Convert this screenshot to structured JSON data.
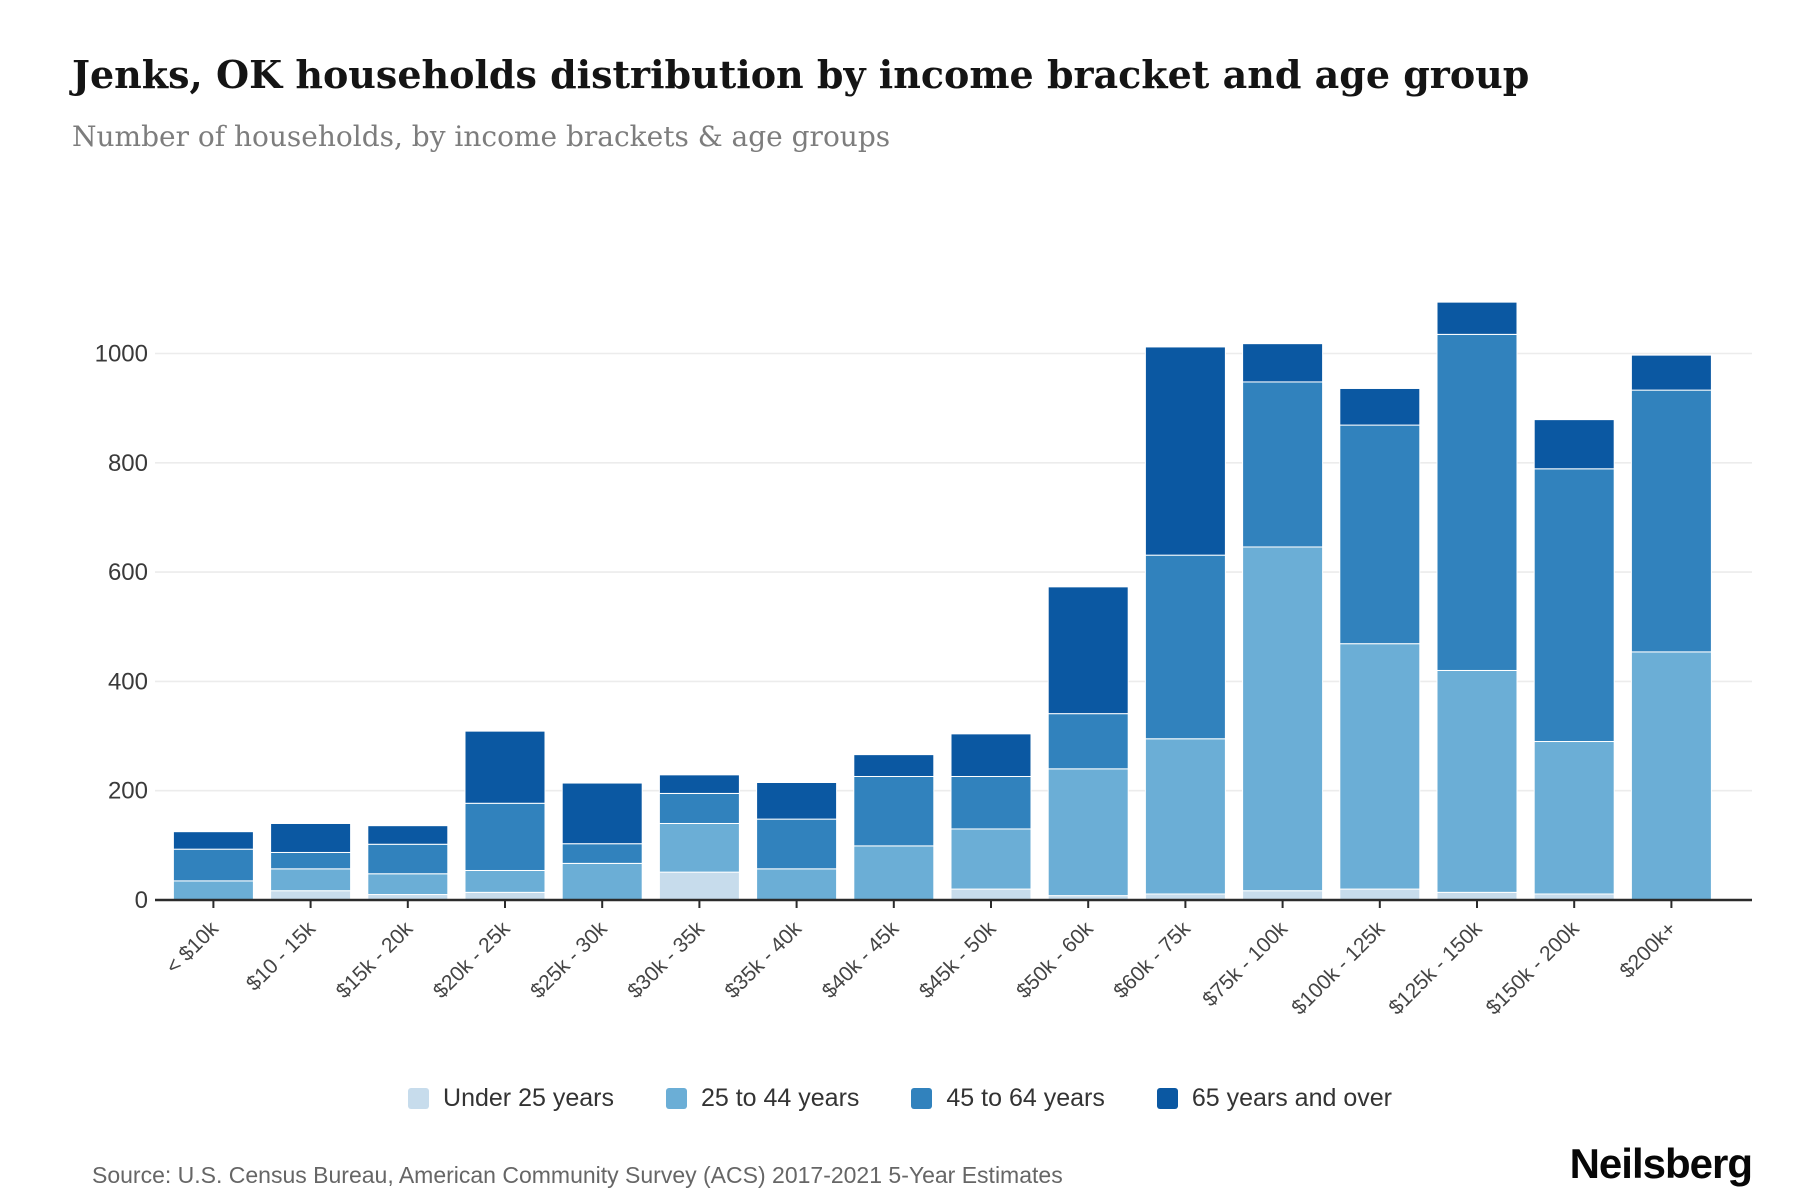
{
  "header": {
    "title": "Jenks, OK households distribution by income bracket and age group",
    "subtitle": "Number of households, by income brackets & age groups"
  },
  "footer": {
    "source": "Source: U.S. Census Bureau, American Community Survey (ACS) 2017-2021 5-Year Estimates",
    "brand": "Neilsberg"
  },
  "chart_data": {
    "type": "bar",
    "stacked": true,
    "title": "Jenks, OK households distribution by income bracket and age group",
    "subtitle": "Number of households, by income brackets & age groups",
    "xlabel": "",
    "ylabel": "",
    "ylim": [
      0,
      1100
    ],
    "yticks": [
      0,
      200,
      400,
      600,
      800,
      1000
    ],
    "grid": true,
    "legend_position": "bottom",
    "categories": [
      "< $10k",
      "$10 - 15k",
      "$15k - 20k",
      "$20k - 25k",
      "$25k - 30k",
      "$30k - 35k",
      "$35k - 40k",
      "$40k - 45k",
      "$45k - 50k",
      "$50k - 60k",
      "$60k - 75k",
      "$75k - 100k",
      "$100k - 125k",
      "$125k - 150k",
      "$150k - 200k",
      "$200k+"
    ],
    "series": [
      {
        "name": "Under 25 years",
        "color": "#c7dcec",
        "values": [
          0,
          17,
          10,
          14,
          0,
          51,
          0,
          0,
          20,
          8,
          11,
          17,
          20,
          14,
          11,
          0
        ]
      },
      {
        "name": "25 to 44 years",
        "color": "#6baed6",
        "values": [
          35,
          40,
          38,
          40,
          67,
          89,
          57,
          99,
          110,
          232,
          284,
          629,
          449,
          406,
          279,
          454
        ]
      },
      {
        "name": "45 to 64 years",
        "color": "#3182bd",
        "values": [
          58,
          30,
          54,
          123,
          36,
          55,
          91,
          127,
          96,
          101,
          336,
          302,
          400,
          615,
          499,
          479
        ]
      },
      {
        "name": "65 years and over",
        "color": "#0b58a2",
        "values": [
          32,
          53,
          34,
          132,
          111,
          34,
          67,
          40,
          78,
          232,
          381,
          70,
          67,
          59,
          90,
          64
        ]
      }
    ],
    "axis_color": "#2b2b2b",
    "gridline_color": "#ececec",
    "tick_label_color": "#444444",
    "segment_separator_color": "#ffffff"
  }
}
